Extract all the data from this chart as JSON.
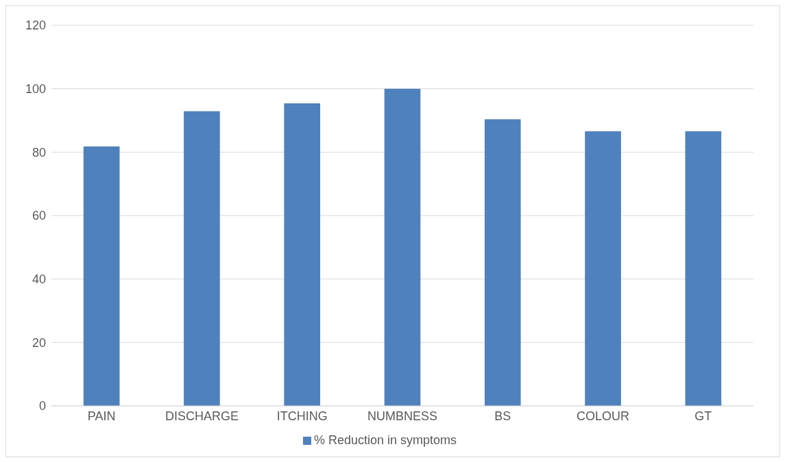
{
  "chart_data": {
    "type": "bar",
    "categories": [
      "PAIN",
      "DISCHARGE",
      "ITCHING",
      "NUMBNESS",
      "BS",
      "COLOUR",
      "GT"
    ],
    "series": [
      {
        "name": "% Reduction in symptoms",
        "color": "#4f81bd",
        "values": [
          81.8,
          92.9,
          95.4,
          100,
          90.4,
          86.6,
          86.6
        ]
      }
    ],
    "ylim": [
      0,
      120
    ],
    "yticks": [
      0,
      20,
      40,
      60,
      80,
      100,
      120
    ],
    "grid": "y",
    "legend": "bottom"
  }
}
